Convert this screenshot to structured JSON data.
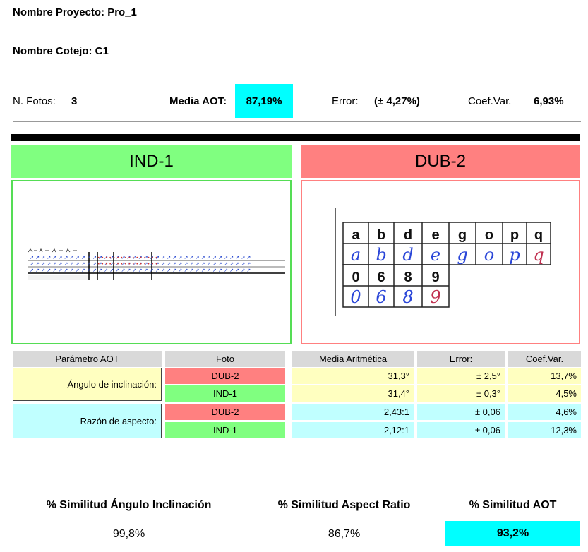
{
  "header": {
    "project_label": "Nombre Proyecto: Pro_1",
    "cotejo_label": "Nombre Cotejo: C1"
  },
  "stats": {
    "fotos_label": "N. Fotos:",
    "fotos_value": "3",
    "media_label": "Media AOT:",
    "media_value": "87,19%",
    "error_label": "Error:",
    "error_value": "(± 4,27%)",
    "coef_label": "Coef.Var.",
    "coef_value": "6,93%"
  },
  "panels": {
    "left_title": "IND-1",
    "right_title": "DUB-2"
  },
  "dub_sample": {
    "row1": [
      "a",
      "b",
      "d",
      "e",
      "g",
      "o",
      "p",
      "q"
    ],
    "row3": [
      "0",
      "6",
      "8",
      "9"
    ]
  },
  "table": {
    "headers": {
      "param": "Parámetro AOT",
      "foto": "Foto",
      "media": "Media Aritmética",
      "error": "Error:",
      "coef": "Coef.Var."
    },
    "groups": [
      {
        "param": "Ángulo de inclinación:",
        "rows": [
          {
            "foto": "DUB-2",
            "media": "31,3°",
            "error": "± 2,5°",
            "coef": "13,7%"
          },
          {
            "foto": "IND-1",
            "media": "31,4°",
            "error": "± 0,3°",
            "coef": "4,5%"
          }
        ]
      },
      {
        "param": "Razón de aspecto:",
        "rows": [
          {
            "foto": "DUB-2",
            "media": "2,43:1",
            "error": "± 0,06",
            "coef": "4,6%"
          },
          {
            "foto": "IND-1",
            "media": "2,12:1",
            "error": "± 0,06",
            "coef": "12,3%"
          }
        ]
      }
    ]
  },
  "summary": {
    "angle_label": "% Similitud Ángulo Inclinación",
    "angle_value": "99,8%",
    "aspect_label": "% Similitud Aspect Ratio",
    "aspect_value": "86,7%",
    "aot_label": "% Similitud AOT",
    "aot_value": "93,2%"
  },
  "colors": {
    "accent_cyan": "#00ffff",
    "ind_green": "#80ff80",
    "dub_red": "#ff8080",
    "angle_yellow": "#ffffc0",
    "aspect_cyan": "#c0ffff"
  }
}
